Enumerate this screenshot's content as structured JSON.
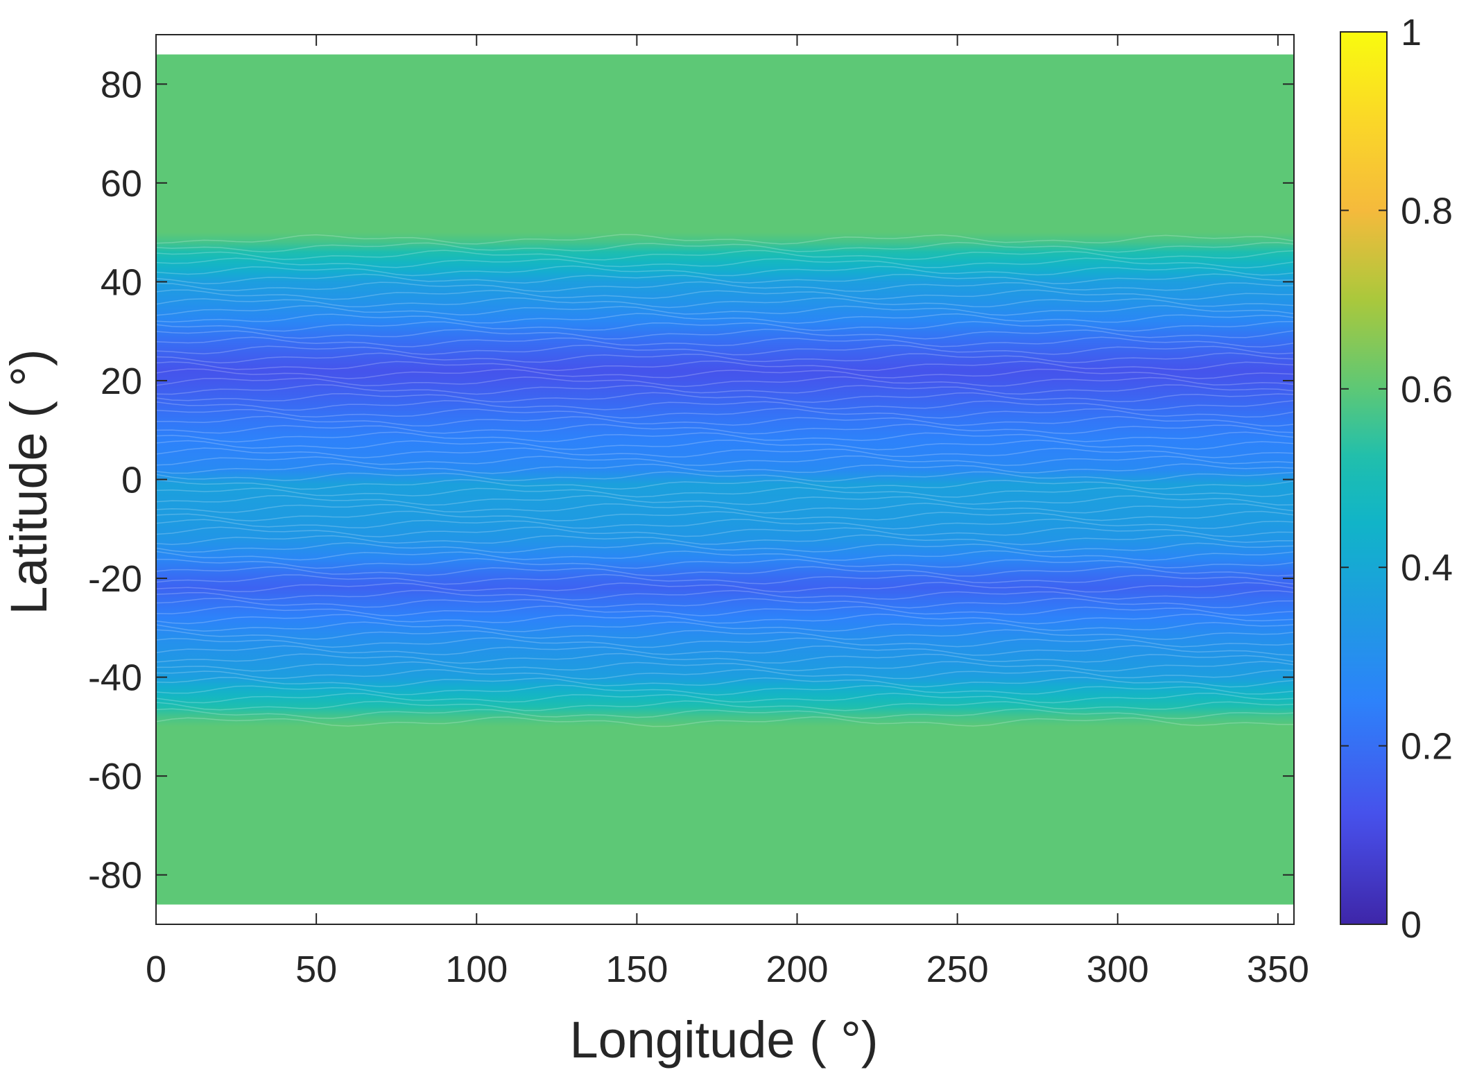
{
  "chart_data": {
    "type": "heatmap",
    "subtype": "filled-contour",
    "xlabel": "Longitude ( °)",
    "ylabel": "Latitude ( °)",
    "xlim": [
      0,
      355
    ],
    "ylim": [
      -90,
      90
    ],
    "xticks": [
      0,
      50,
      100,
      150,
      200,
      250,
      300,
      350
    ],
    "yticks": [
      -80,
      -60,
      -40,
      -20,
      0,
      20,
      40,
      60,
      80
    ],
    "data_extent_lat": [
      -86,
      86
    ],
    "colormap": "parula",
    "clim": [
      0,
      1
    ],
    "colorbar": {
      "position": "right",
      "ticks": [
        0,
        0.2,
        0.4,
        0.6,
        0.8,
        1
      ],
      "tick_labels": [
        "0",
        "0.2",
        "0.4",
        "0.6",
        "0.8",
        "1"
      ]
    },
    "latitude_profile": {
      "lat": [
        -86,
        -60,
        -50,
        -48,
        -46,
        -44,
        -42,
        -40,
        -36,
        -32,
        -28,
        -24,
        -22,
        -20,
        -16,
        -12,
        -8,
        -4,
        -1,
        2,
        5,
        8,
        12,
        16,
        20,
        22,
        24,
        28,
        32,
        36,
        40,
        42,
        44,
        46,
        48,
        50,
        60,
        86
      ],
      "value": [
        0.6,
        0.6,
        0.6,
        0.57,
        0.52,
        0.47,
        0.42,
        0.36,
        0.33,
        0.3,
        0.25,
        0.2,
        0.17,
        0.19,
        0.27,
        0.33,
        0.35,
        0.36,
        0.37,
        0.28,
        0.26,
        0.25,
        0.22,
        0.18,
        0.14,
        0.13,
        0.15,
        0.2,
        0.27,
        0.32,
        0.36,
        0.42,
        0.47,
        0.52,
        0.57,
        0.6,
        0.6,
        0.6
      ]
    },
    "grid": false,
    "legend": "none"
  }
}
